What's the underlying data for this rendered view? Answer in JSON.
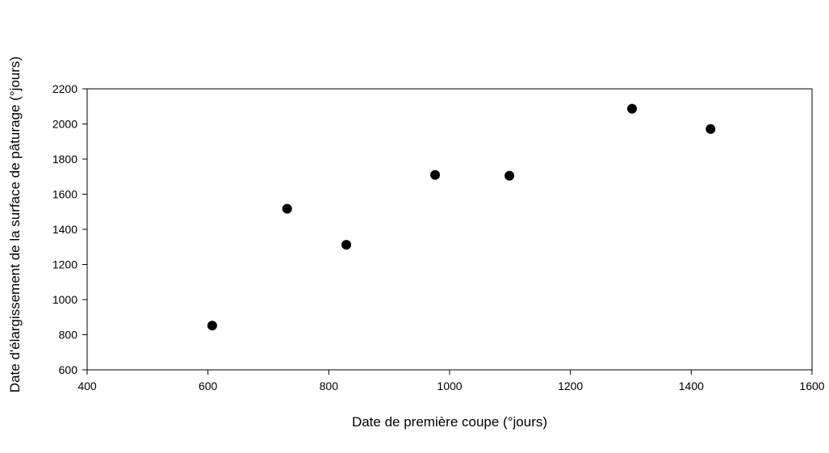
{
  "chart_data": {
    "type": "scatter",
    "title": "",
    "xlabel": "Date de première coupe (°jours)",
    "ylabel": "Date d'élargissement de la surface de pâturage (°jours)",
    "xlim": [
      400,
      1600
    ],
    "ylim": [
      600,
      2200
    ],
    "xticks": [
      400,
      600,
      800,
      1000,
      1200,
      1400,
      1600
    ],
    "yticks": [
      600,
      800,
      1000,
      1200,
      1400,
      1600,
      1800,
      2000,
      2200
    ],
    "grid": false,
    "legend": "none",
    "marker_color": "#000000",
    "points": [
      {
        "x": 607,
        "y": 852
      },
      {
        "x": 731,
        "y": 1517
      },
      {
        "x": 829,
        "y": 1312
      },
      {
        "x": 976,
        "y": 1710
      },
      {
        "x": 1099,
        "y": 1705
      },
      {
        "x": 1302,
        "y": 2087
      },
      {
        "x": 1432,
        "y": 1971
      }
    ]
  }
}
